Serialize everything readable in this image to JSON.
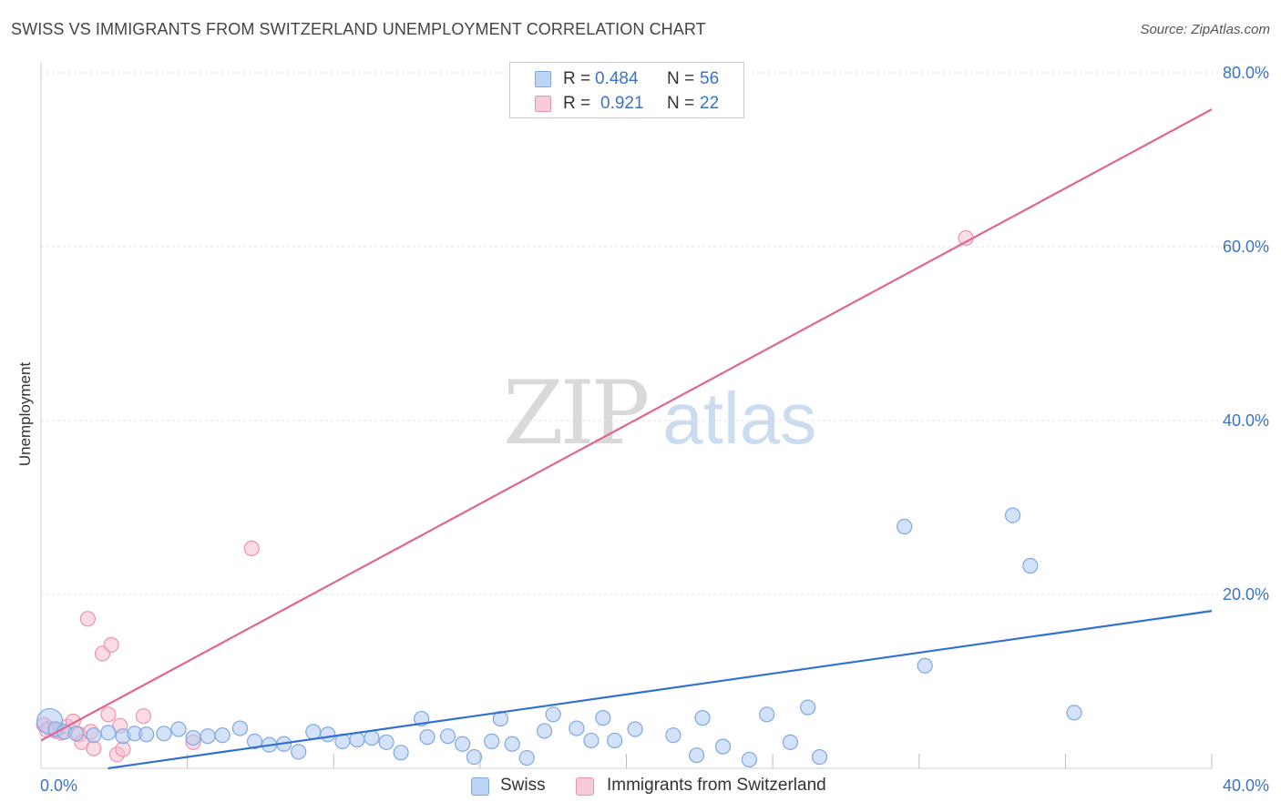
{
  "title": "SWISS VS IMMIGRANTS FROM SWITZERLAND UNEMPLOYMENT CORRELATION CHART",
  "source": "Source: ZipAtlas.com",
  "watermark": {
    "zip": "ZIP",
    "atlas": "atlas"
  },
  "legend_top": [
    {
      "r_label": "R =",
      "r_value": "0.484",
      "n_label": "N =",
      "n_value": "56"
    },
    {
      "r_label": "R =",
      "r_value": "0.921",
      "n_label": "N =",
      "n_value": "22"
    }
  ],
  "legend_bottom": [
    {
      "label": "Swiss"
    },
    {
      "label": "Immigrants from Switzerland"
    }
  ],
  "colors": {
    "swiss_fill": "#aecbf2",
    "swiss_stroke": "#7fa8e0",
    "swiss_line": "#2f6fd1",
    "imm_fill": "#f7bfd0",
    "imm_stroke": "#ee92b0",
    "imm_line": "#e0668f",
    "tick_text": "#3b73c4",
    "grid": "#e2e2e2"
  },
  "chart_data": {
    "type": "scatter",
    "title": "SWISS VS IMMIGRANTS FROM SWITZERLAND UNEMPLOYMENT CORRELATION CHART",
    "xlabel": "",
    "ylabel": "Unemployment",
    "xlim": [
      0,
      40
    ],
    "ylim": [
      0,
      80
    ],
    "x_tick_labels": [
      "0.0%",
      "40.0%"
    ],
    "y_ticks": [
      20,
      40,
      60,
      80
    ],
    "y_tick_labels": [
      "20.0%",
      "40.0%",
      "60.0%",
      "80.0%"
    ],
    "grid": true,
    "legend_position": "top-center",
    "series": [
      {
        "name": "Swiss",
        "r": 0.484,
        "n": 56,
        "trendline": [
          [
            0,
            -1.1
          ],
          [
            40,
            18.1
          ]
        ],
        "points": [
          [
            0.3,
            5.4
          ],
          [
            0.5,
            4.5
          ],
          [
            0.8,
            4.2
          ],
          [
            1.2,
            4.0
          ],
          [
            1.8,
            3.8
          ],
          [
            2.3,
            4.1
          ],
          [
            2.8,
            3.7
          ],
          [
            3.2,
            4.0
          ],
          [
            3.6,
            3.9
          ],
          [
            4.2,
            4.0
          ],
          [
            4.7,
            4.5
          ],
          [
            5.2,
            3.5
          ],
          [
            5.7,
            3.7
          ],
          [
            6.2,
            3.8
          ],
          [
            6.8,
            4.6
          ],
          [
            7.3,
            3.1
          ],
          [
            7.8,
            2.7
          ],
          [
            8.3,
            2.8
          ],
          [
            8.8,
            1.9
          ],
          [
            9.3,
            4.2
          ],
          [
            9.8,
            3.9
          ],
          [
            10.3,
            3.1
          ],
          [
            10.8,
            3.3
          ],
          [
            11.3,
            3.5
          ],
          [
            11.8,
            3.0
          ],
          [
            12.3,
            1.8
          ],
          [
            13.0,
            5.7
          ],
          [
            13.2,
            3.6
          ],
          [
            13.9,
            3.7
          ],
          [
            14.4,
            2.8
          ],
          [
            14.8,
            1.3
          ],
          [
            15.4,
            3.1
          ],
          [
            15.7,
            5.7
          ],
          [
            16.1,
            2.8
          ],
          [
            16.6,
            1.2
          ],
          [
            17.2,
            4.3
          ],
          [
            17.5,
            6.2
          ],
          [
            18.3,
            4.6
          ],
          [
            18.8,
            3.2
          ],
          [
            19.2,
            5.8
          ],
          [
            19.6,
            3.2
          ],
          [
            20.3,
            4.5
          ],
          [
            21.6,
            3.8
          ],
          [
            22.4,
            1.5
          ],
          [
            22.6,
            5.8
          ],
          [
            23.3,
            2.5
          ],
          [
            24.2,
            1.0
          ],
          [
            24.8,
            6.2
          ],
          [
            25.6,
            3.0
          ],
          [
            26.2,
            7.0
          ],
          [
            26.6,
            1.3
          ],
          [
            29.5,
            27.8
          ],
          [
            30.2,
            11.8
          ],
          [
            33.2,
            29.1
          ],
          [
            33.8,
            23.3
          ],
          [
            35.3,
            6.4
          ]
        ]
      },
      {
        "name": "Immigrants from Switzerland",
        "r": 0.921,
        "n": 22,
        "trendline": [
          [
            0,
            3.2
          ],
          [
            40,
            75.8
          ]
        ],
        "points": [
          [
            0.1,
            5.0
          ],
          [
            0.3,
            4.6
          ],
          [
            0.5,
            4.3
          ],
          [
            0.7,
            4.1
          ],
          [
            0.9,
            4.8
          ],
          [
            1.1,
            5.4
          ],
          [
            1.3,
            3.9
          ],
          [
            1.4,
            3.0
          ],
          [
            1.6,
            17.2
          ],
          [
            1.7,
            4.2
          ],
          [
            1.8,
            2.3
          ],
          [
            2.1,
            13.2
          ],
          [
            2.3,
            6.2
          ],
          [
            2.4,
            14.2
          ],
          [
            2.6,
            1.6
          ],
          [
            2.7,
            4.9
          ],
          [
            2.8,
            2.2
          ],
          [
            3.5,
            6.0
          ],
          [
            5.2,
            3.0
          ],
          [
            7.2,
            25.3
          ],
          [
            31.6,
            61.0
          ],
          [
            0.2,
            4.4
          ]
        ]
      }
    ]
  }
}
